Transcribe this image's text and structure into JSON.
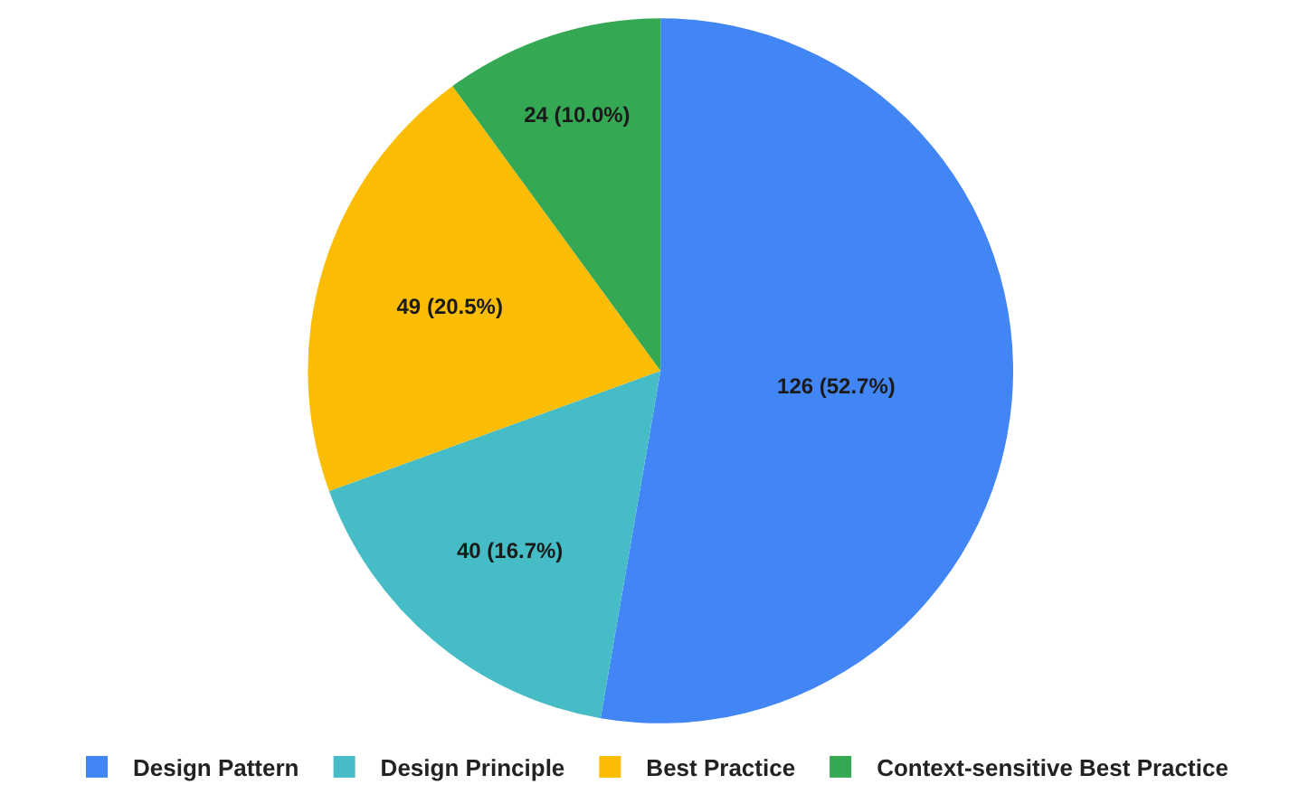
{
  "chart_data": {
    "type": "pie",
    "categories": [
      "Design Pattern",
      "Design Principle",
      "Best Practice",
      "Context-sensitive Best Practice"
    ],
    "values": [
      126,
      40,
      49,
      24
    ],
    "colors": [
      "#4285f4",
      "#46bdc6",
      "#fbbc04",
      "#34a853"
    ],
    "value_labels": [
      "126 (52.7%)",
      "40 (16.7%)",
      "49 (20.5%)",
      "24 (10.0%)"
    ],
    "legend": "bottom"
  }
}
